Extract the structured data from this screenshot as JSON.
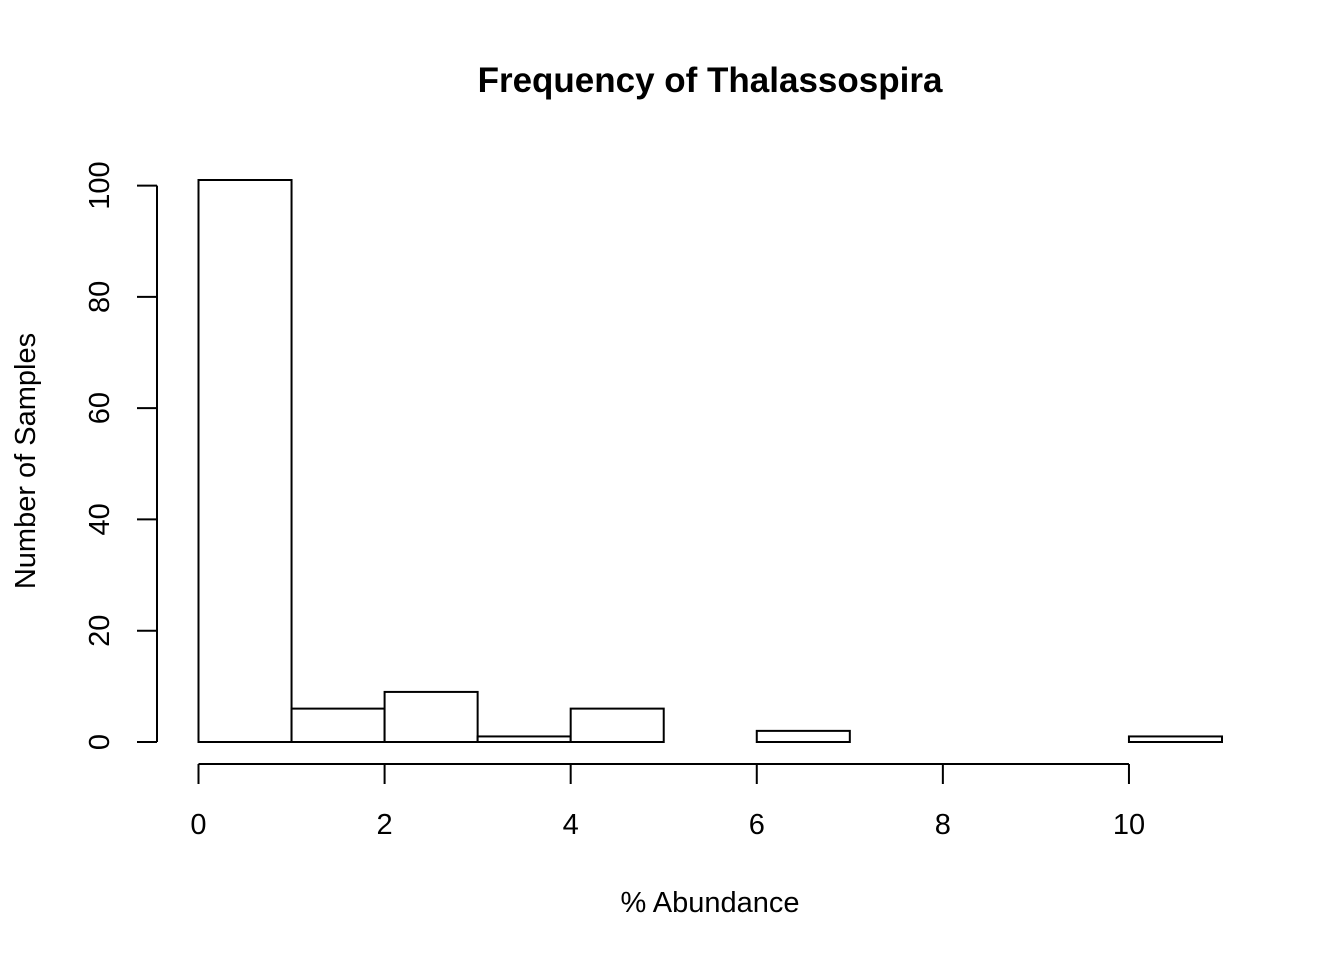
{
  "chart_data": {
    "type": "bar",
    "subtype": "histogram",
    "title": "Frequency of Thalassospira",
    "xlabel": "% Abundance",
    "ylabel": "Number of Samples",
    "bin_edges": [
      0,
      1,
      2,
      3,
      4,
      5,
      6,
      7,
      8,
      9,
      10,
      11
    ],
    "values": [
      101,
      6,
      9,
      1,
      6,
      0,
      2,
      0,
      0,
      0,
      1
    ],
    "xlim": [
      0,
      11
    ],
    "ylim": [
      0,
      101
    ],
    "x_ticks": [
      0,
      2,
      4,
      6,
      8,
      10
    ],
    "x_tick_labels": [
      "0",
      "2",
      "4",
      "6",
      "8",
      "10"
    ],
    "y_ticks": [
      0,
      20,
      40,
      60,
      80,
      100
    ],
    "y_tick_labels": [
      "0",
      "20",
      "40",
      "60",
      "80",
      "100"
    ],
    "grid": false,
    "legend": "none",
    "colors": {
      "bar_fill": "#ffffff",
      "bar_stroke": "#000000"
    }
  }
}
